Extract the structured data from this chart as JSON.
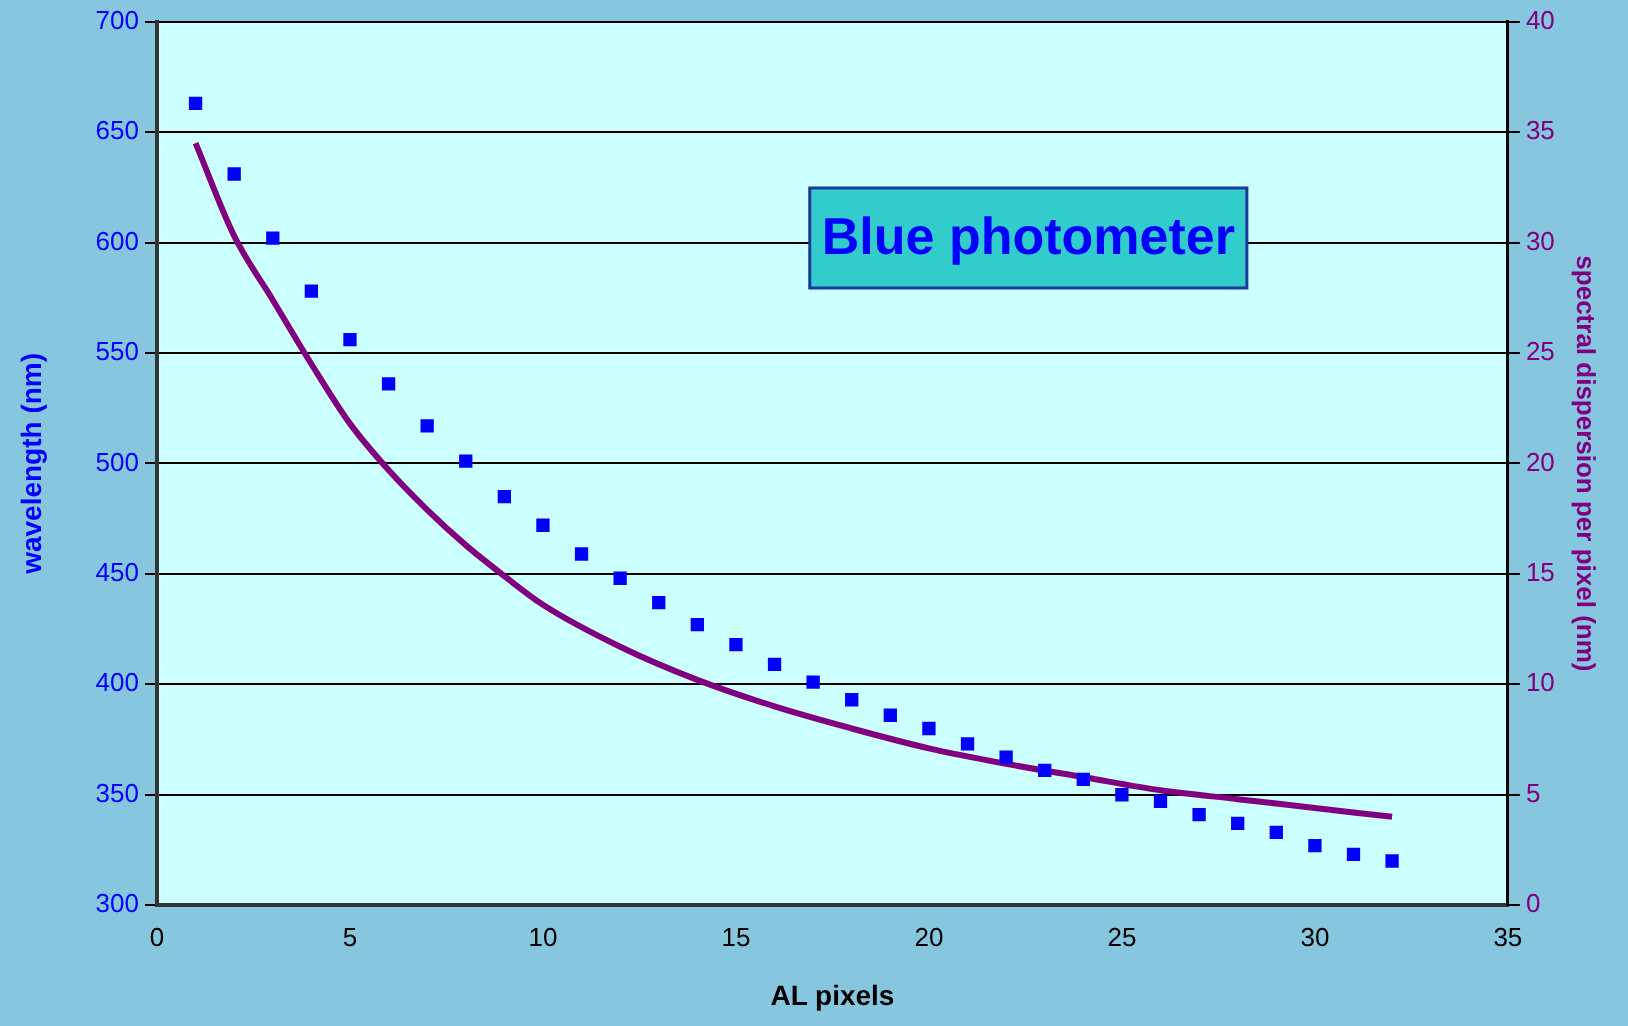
{
  "chart_data": {
    "type": "scatter",
    "title": "Blue photometer",
    "xlabel": "AL pixels",
    "ylabel": "wavelength (nm)",
    "y2label": "spectral dispersion per pixel (nm)",
    "xlim": [
      0,
      35
    ],
    "xticks": [
      0,
      5,
      10,
      15,
      20,
      25,
      30,
      35
    ],
    "ylim": [
      300,
      700
    ],
    "yticks": [
      300,
      350,
      400,
      450,
      500,
      550,
      600,
      650,
      700
    ],
    "y2lim": [
      0,
      40
    ],
    "y2ticks": [
      0,
      5,
      10,
      15,
      20,
      25,
      30,
      35,
      40
    ],
    "grid": "y",
    "legend": false,
    "marker": "square",
    "series": [
      {
        "color": "#0000ff",
        "x": [
          1,
          2,
          3,
          4,
          5,
          6,
          7,
          8,
          9,
          10,
          11,
          12,
          13,
          14,
          15,
          16,
          17,
          18,
          19,
          20,
          21,
          22,
          23,
          24,
          25,
          26,
          27,
          28,
          29,
          30,
          31,
          32
        ],
        "values": [
          663,
          631,
          602,
          578,
          556,
          536,
          517,
          501,
          485,
          472,
          459,
          448,
          437,
          427,
          418,
          409,
          401,
          393,
          386,
          380,
          373,
          367,
          361,
          357,
          350,
          347,
          341,
          337,
          333,
          327,
          323,
          320
        ]
      },
      {
        "type": "line",
        "axis": "y2",
        "color": "#800080",
        "marker": "none",
        "line_style": "solid",
        "x": [
          1,
          2,
          3,
          4,
          5,
          6,
          7,
          8,
          9,
          10,
          12,
          14,
          16,
          18,
          20,
          22,
          24,
          26,
          28,
          30,
          32
        ],
        "values": [
          34.5,
          30.3,
          27.4,
          24.5,
          21.8,
          19.7,
          17.9,
          16.3,
          14.9,
          13.6,
          11.7,
          10.2,
          9.0,
          8.0,
          7.1,
          6.4,
          5.8,
          5.2,
          4.8,
          4.4,
          4.0
        ]
      }
    ]
  }
}
